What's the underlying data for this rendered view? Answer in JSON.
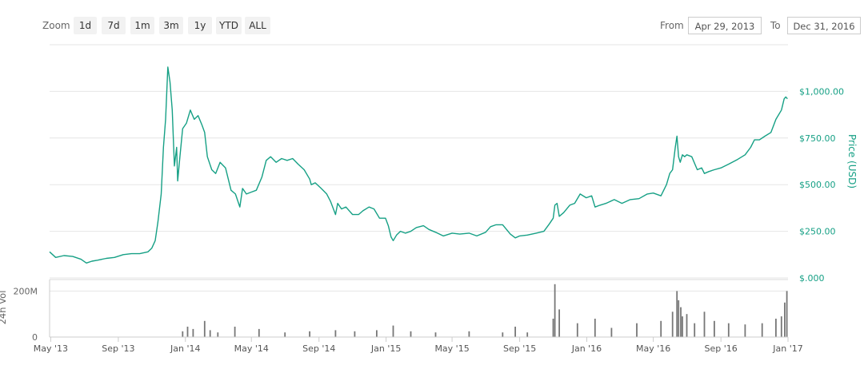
{
  "toolbar": {
    "zoom_label": "Zoom",
    "zoom_buttons": [
      "1d",
      "7d",
      "1m",
      "3m",
      "1y",
      "YTD",
      "ALL"
    ],
    "from_label": "From",
    "from_value": "Apr 29, 2013",
    "to_label": "To",
    "to_value": "Dec 31, 2016"
  },
  "colors": {
    "price_line": "#16a085",
    "price_axis_text": "#16a085",
    "volume_bars": "#777777",
    "grid": "#e6e6e6"
  },
  "chart_data": [
    {
      "type": "line",
      "series": [
        {
          "name": "Price (USD)",
          "x": [
            "2013-04-29",
            "2013-05-10",
            "2013-05-25",
            "2013-06-10",
            "2013-06-25",
            "2013-07-05",
            "2013-07-15",
            "2013-07-25",
            "2013-08-10",
            "2013-08-25",
            "2013-09-10",
            "2013-09-25",
            "2013-10-10",
            "2013-10-25",
            "2013-11-01",
            "2013-11-07",
            "2013-11-12",
            "2013-11-18",
            "2013-11-22",
            "2013-11-26",
            "2013-11-30",
            "2013-12-04",
            "2013-12-08",
            "2013-12-12",
            "2013-12-16",
            "2013-12-18",
            "2013-12-22",
            "2013-12-27",
            "2014-01-03",
            "2014-01-10",
            "2014-01-17",
            "2014-01-24",
            "2014-01-31",
            "2014-02-05",
            "2014-02-10",
            "2014-02-18",
            "2014-02-25",
            "2014-03-05",
            "2014-03-15",
            "2014-03-25",
            "2014-04-02",
            "2014-04-10",
            "2014-04-15",
            "2014-04-22",
            "2014-05-01",
            "2014-05-10",
            "2014-05-20",
            "2014-05-28",
            "2014-06-05",
            "2014-06-15",
            "2014-06-25",
            "2014-07-05",
            "2014-07-15",
            "2014-07-25",
            "2014-08-05",
            "2014-08-15",
            "2014-08-18",
            "2014-08-25",
            "2014-09-05",
            "2014-09-15",
            "2014-09-22",
            "2014-10-01",
            "2014-10-05",
            "2014-10-12",
            "2014-10-20",
            "2014-11-01",
            "2014-11-12",
            "2014-11-20",
            "2014-12-01",
            "2014-12-10",
            "2014-12-20",
            "2014-12-31",
            "2015-01-05",
            "2015-01-10",
            "2015-01-14",
            "2015-01-20",
            "2015-01-27",
            "2015-02-05",
            "2015-02-15",
            "2015-02-25",
            "2015-03-10",
            "2015-03-20",
            "2015-04-01",
            "2015-04-15",
            "2015-05-01",
            "2015-05-15",
            "2015-06-01",
            "2015-06-15",
            "2015-07-01",
            "2015-07-10",
            "2015-07-20",
            "2015-08-01",
            "2015-08-15",
            "2015-08-24",
            "2015-09-01",
            "2015-09-15",
            "2015-10-01",
            "2015-10-15",
            "2015-10-25",
            "2015-11-01",
            "2015-11-04",
            "2015-11-08",
            "2015-11-12",
            "2015-11-20",
            "2015-12-01",
            "2015-12-10",
            "2015-12-20",
            "2015-12-31",
            "2016-01-10",
            "2016-01-16",
            "2016-01-25",
            "2016-02-05",
            "2016-02-20",
            "2016-03-05",
            "2016-03-20",
            "2016-04-05",
            "2016-04-20",
            "2016-05-01",
            "2016-05-15",
            "2016-05-25",
            "2016-05-31",
            "2016-06-05",
            "2016-06-10",
            "2016-06-13",
            "2016-06-16",
            "2016-06-19",
            "2016-06-23",
            "2016-06-27",
            "2016-07-01",
            "2016-07-10",
            "2016-07-20",
            "2016-07-28",
            "2016-08-02",
            "2016-08-10",
            "2016-08-20",
            "2016-09-01",
            "2016-09-15",
            "2016-10-01",
            "2016-10-15",
            "2016-10-25",
            "2016-11-01",
            "2016-11-10",
            "2016-11-20",
            "2016-12-01",
            "2016-12-10",
            "2016-12-20",
            "2016-12-25",
            "2016-12-28",
            "2016-12-31"
          ],
          "y": [
            140,
            110,
            120,
            115,
            100,
            80,
            90,
            95,
            105,
            110,
            125,
            130,
            130,
            140,
            160,
            200,
            300,
            450,
            700,
            850,
            1130,
            1050,
            900,
            600,
            700,
            520,
            650,
            800,
            830,
            900,
            850,
            870,
            820,
            780,
            650,
            580,
            560,
            620,
            590,
            470,
            450,
            380,
            480,
            450,
            460,
            470,
            540,
            630,
            650,
            620,
            640,
            630,
            640,
            610,
            580,
            530,
            500,
            510,
            480,
            450,
            410,
            340,
            400,
            370,
            380,
            340,
            340,
            360,
            380,
            370,
            320,
            320,
            280,
            220,
            200,
            230,
            250,
            240,
            250,
            270,
            280,
            260,
            245,
            225,
            240,
            235,
            240,
            225,
            245,
            275,
            285,
            285,
            235,
            215,
            225,
            230,
            240,
            250,
            290,
            320,
            390,
            400,
            330,
            350,
            390,
            400,
            450,
            430,
            440,
            380,
            390,
            400,
            420,
            400,
            420,
            425,
            450,
            455,
            440,
            500,
            560,
            580,
            700,
            760,
            650,
            620,
            660,
            650,
            660,
            650,
            580,
            590,
            560,
            570,
            580,
            590,
            610,
            635,
            660,
            700,
            740,
            740,
            760,
            780,
            850,
            900,
            960,
            970,
            960
          ]
        }
      ],
      "x_tick_labels": [
        "May '13",
        "Sep '13",
        "Jan '14",
        "May '14",
        "Sep '14",
        "Jan '15",
        "May '15",
        "Sep '15",
        "Jan '16",
        "May '16",
        "Sep '16",
        "Jan '17"
      ],
      "y_tick_labels": [
        "$.000",
        "$250.00",
        "$500.00",
        "$750.00",
        "$1,000.00"
      ],
      "ylabel": "Price (USD)",
      "ylim": [
        0,
        1250
      ],
      "grid": true
    },
    {
      "type": "bar",
      "series": [
        {
          "name": "24h Vol",
          "x": [
            "2013-12-27",
            "2014-01-05",
            "2014-01-15",
            "2014-02-05",
            "2014-02-15",
            "2014-03-01",
            "2014-04-01",
            "2014-05-15",
            "2014-07-01",
            "2014-08-15",
            "2014-10-01",
            "2014-11-05",
            "2014-12-15",
            "2015-01-14",
            "2015-02-15",
            "2015-04-01",
            "2015-06-01",
            "2015-08-01",
            "2015-08-24",
            "2015-09-15",
            "2015-11-01",
            "2015-11-04",
            "2015-11-12",
            "2015-12-15",
            "2016-01-16",
            "2016-02-15",
            "2016-04-01",
            "2016-05-15",
            "2016-06-05",
            "2016-06-13",
            "2016-06-16",
            "2016-06-20",
            "2016-06-23",
            "2016-07-01",
            "2016-07-15",
            "2016-08-02",
            "2016-08-20",
            "2016-09-15",
            "2016-10-15",
            "2016-11-15",
            "2016-12-10",
            "2016-12-20",
            "2016-12-26",
            "2016-12-30"
          ],
          "y": [
            25000000,
            45000000,
            35000000,
            70000000,
            30000000,
            20000000,
            45000000,
            35000000,
            20000000,
            25000000,
            30000000,
            25000000,
            30000000,
            50000000,
            25000000,
            20000000,
            25000000,
            20000000,
            45000000,
            20000000,
            80000000,
            230000000,
            120000000,
            60000000,
            80000000,
            40000000,
            60000000,
            70000000,
            110000000,
            200000000,
            160000000,
            130000000,
            90000000,
            100000000,
            60000000,
            110000000,
            70000000,
            60000000,
            55000000,
            60000000,
            80000000,
            90000000,
            150000000,
            200000000
          ]
        }
      ],
      "y_tick_labels": [
        "0",
        "200M"
      ],
      "ylabel": "24h Vol",
      "ylim": [
        0,
        250000000
      ]
    }
  ]
}
